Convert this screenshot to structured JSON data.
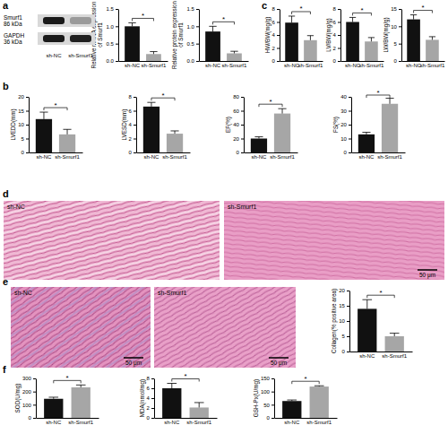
{
  "chart_data": [
    {
      "type": "bar",
      "ylabel": [
        "Relative mRNA expression",
        "of Smurf1"
      ],
      "categories": [
        "sh-NC",
        "sh-Smurf1"
      ],
      "values": [
        1.0,
        0.2
      ],
      "errors": [
        0.1,
        0.07
      ],
      "colors": [
        "#111111",
        "#a6a6a6"
      ],
      "ylim": [
        0,
        1.5
      ],
      "yticks": [
        {
          "value": 0,
          "label": "0.0"
        },
        0.5,
        {
          "value": 1,
          "label": "1.0"
        },
        1.5
      ],
      "annotation": "*"
    },
    {
      "type": "bar",
      "ylabel": [
        "Relative protein expression",
        "of Smurf1"
      ],
      "categories": [
        "sh-NC",
        "sh-Smurf1"
      ],
      "values": [
        0.85,
        0.22
      ],
      "errors": [
        0.15,
        0.06
      ],
      "colors": [
        "#111111",
        "#a6a6a6"
      ],
      "ylim": [
        0,
        1.5
      ],
      "yticks": [
        {
          "value": 0,
          "label": "0.0"
        },
        0.5,
        {
          "value": 1,
          "label": "1.0"
        },
        1.5
      ],
      "annotation": "*"
    },
    {
      "type": "bar",
      "ylabel": "LVEDD(mm)",
      "categories": [
        "sh-NC",
        "sh-Smurf1"
      ],
      "values": [
        12,
        6.5
      ],
      "errors": [
        2.5,
        1.8
      ],
      "colors": [
        "#111111",
        "#a6a6a6"
      ],
      "ylim": [
        0,
        20
      ],
      "yticks": [
        0,
        5,
        10,
        15,
        20
      ],
      "annotation": "*"
    },
    {
      "type": "bar",
      "ylabel": "LVESD(mm)",
      "categories": [
        "sh-NC",
        "sh-Smurf1"
      ],
      "values": [
        6.6,
        2.7
      ],
      "errors": [
        0.6,
        0.4
      ],
      "colors": [
        "#111111",
        "#a6a6a6"
      ],
      "ylim": [
        0,
        8
      ],
      "yticks": [
        0,
        2,
        4,
        6,
        8
      ],
      "annotation": "*"
    },
    {
      "type": "bar",
      "ylabel": "EF(%)",
      "categories": [
        "sh-NC",
        "sh-Smurf1"
      ],
      "values": [
        20,
        56
      ],
      "errors": [
        2.5,
        7
      ],
      "colors": [
        "#111111",
        "#a6a6a6"
      ],
      "ylim": [
        0,
        80
      ],
      "yticks": [
        0,
        20,
        40,
        60,
        80
      ],
      "annotation": "*"
    },
    {
      "type": "bar",
      "ylabel": "FS(%)",
      "categories": [
        "sh-NC",
        "sh-Smurf1"
      ],
      "values": [
        13,
        35
      ],
      "errors": [
        1.5,
        4
      ],
      "colors": [
        "#111111",
        "#a6a6a6"
      ],
      "ylim": [
        0,
        40
      ],
      "yticks": [
        0,
        10,
        20,
        30,
        40
      ],
      "annotation": "*"
    },
    {
      "type": "bar",
      "ylabel": "HW/BW(mg/g)",
      "categories": [
        "sh-NC",
        "sh-Smurf1"
      ],
      "values": [
        5.9,
        3.2
      ],
      "errors": [
        1.0,
        0.7
      ],
      "colors": [
        "#111111",
        "#a6a6a6"
      ],
      "ylim": [
        0,
        8
      ],
      "yticks": [
        0,
        2,
        4,
        6,
        8
      ],
      "annotation": "*"
    },
    {
      "type": "bar",
      "ylabel": "LV/BW(mg/g)",
      "categories": [
        "sh-NC",
        "sh-Smurf1"
      ],
      "values": [
        6.0,
        3.0
      ],
      "errors": [
        0.7,
        0.6
      ],
      "colors": [
        "#111111",
        "#a6a6a6"
      ],
      "ylim": [
        0,
        8
      ],
      "yticks": [
        0,
        2,
        4,
        6,
        8
      ],
      "annotation": "*"
    },
    {
      "type": "bar",
      "ylabel": "LW/BW(mg/g)",
      "categories": [
        "sh-NC",
        "sh-Smurf1"
      ],
      "values": [
        12,
        6.1
      ],
      "errors": [
        1.3,
        0.9
      ],
      "colors": [
        "#111111",
        "#a6a6a6"
      ],
      "ylim": [
        0,
        15
      ],
      "yticks": [
        0,
        5,
        10,
        15
      ],
      "annotation": "*"
    },
    {
      "type": "bar",
      "ylabel": "Collagen(% positive area)",
      "categories": [
        "sh-NC",
        "sh-Smurf1"
      ],
      "values": [
        14,
        5
      ],
      "errors": [
        3,
        1
      ],
      "colors": [
        "#111111",
        "#a6a6a6"
      ],
      "ylim": [
        0,
        20
      ],
      "yticks": [
        0,
        5,
        10,
        15,
        20
      ],
      "annotation": "*"
    },
    {
      "type": "bar",
      "ylabel": "SOD(U/mg)",
      "categories": [
        "sh-NC",
        "sh-Smurf1"
      ],
      "values": [
        145,
        232
      ],
      "errors": [
        12,
        18
      ],
      "colors": [
        "#111111",
        "#a6a6a6"
      ],
      "ylim": [
        0,
        300
      ],
      "yticks": [
        0,
        100,
        200,
        300
      ],
      "annotation": "*"
    },
    {
      "type": "bar",
      "ylabel": "MDA(nmol/mg)",
      "categories": [
        "sh-NC",
        "sh-Smurf1"
      ],
      "values": [
        6.0,
        2.1
      ],
      "errors": [
        1.0,
        1.0
      ],
      "colors": [
        "#111111",
        "#a6a6a6"
      ],
      "ylim": [
        0,
        8
      ],
      "yticks": [
        0,
        2,
        4,
        6,
        8
      ],
      "annotation": "*"
    },
    {
      "type": "bar",
      "ylabel": "GSH-Px(U/mg)",
      "categories": [
        "sh-NC",
        "sh-Smurf1"
      ],
      "values": [
        64,
        119
      ],
      "errors": [
        4,
        3
      ],
      "colors": [
        "#111111",
        "#a6a6a6"
      ],
      "ylim": [
        0,
        150
      ],
      "yticks": [
        0,
        50,
        100,
        150
      ],
      "annotation": "*"
    }
  ],
  "figure": {
    "panel_labels": [
      "a",
      "b",
      "c",
      "d",
      "e",
      "f"
    ],
    "blot": {
      "rows": [
        {
          "name": "Smurf1",
          "size": "86 kDa"
        },
        {
          "name": "GAPDH",
          "size": "36 kDa"
        }
      ],
      "lanes": [
        "sh-NC",
        "sh-Smurf1"
      ]
    },
    "histology_d": [
      {
        "label": "sh-NC"
      },
      {
        "label": "sh-Smurf1",
        "scale_bar": "50 μm"
      }
    ],
    "histology_e": [
      {
        "label": "sh-NC",
        "scale_bar": "50 μm"
      },
      {
        "label": "sh-Smurf1",
        "scale_bar": "50 μm"
      }
    ]
  }
}
